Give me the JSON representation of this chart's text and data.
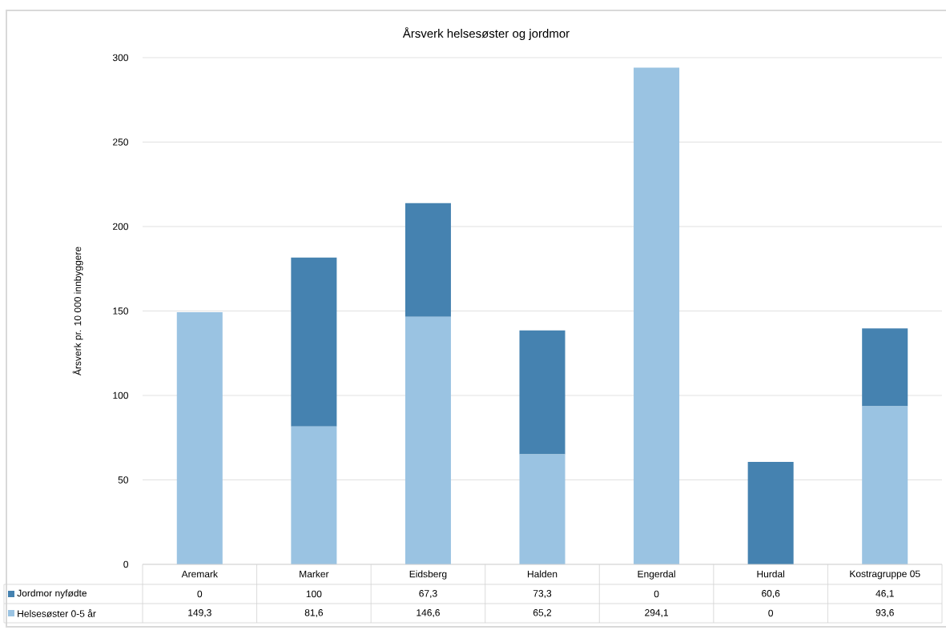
{
  "chart_data": {
    "type": "bar",
    "stacked": true,
    "title": "Årsverk helsesøster og jordmor",
    "ylabel": "Årsverk pr. 10 000 innbyggere",
    "categories": [
      "Aremark",
      "Marker",
      "Eidsberg",
      "Halden",
      "Engerdal",
      "Hurdal",
      "Kostragruppe 05"
    ],
    "series": [
      {
        "name": "Helsesøster 0-5 år",
        "color": "#9ac3e2",
        "values": [
          149.3,
          81.6,
          146.6,
          65.2,
          294.1,
          0,
          93.6
        ],
        "value_labels": [
          "149,3",
          "81,6",
          "146,6",
          "65,2",
          "294,1",
          "0",
          "93,6"
        ]
      },
      {
        "name": "Jordmor nyfødte",
        "color": "#4582b0",
        "values": [
          0,
          100,
          67.3,
          73.3,
          0,
          60.6,
          46.1
        ],
        "value_labels": [
          "0",
          "100",
          "67,3",
          "73,3",
          "0",
          "60,6",
          "46,1"
        ]
      }
    ],
    "ylim": [
      0,
      300
    ],
    "yticks": [
      0,
      50,
      100,
      150,
      200,
      250,
      300
    ],
    "grid": "y",
    "legend": "bottom"
  }
}
